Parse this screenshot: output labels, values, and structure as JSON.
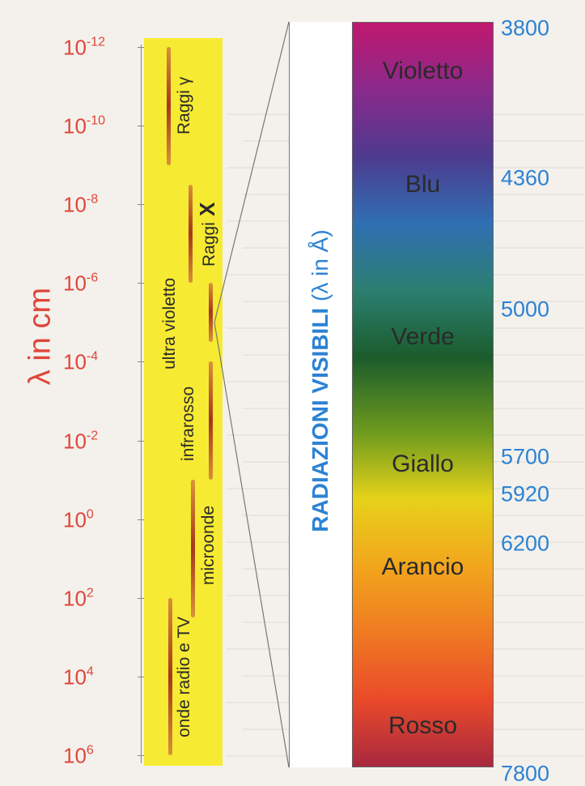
{
  "axis": {
    "label": "λ in cm",
    "ticks": [
      {
        "base": "10",
        "exp": "-12"
      },
      {
        "base": "10",
        "exp": "-10"
      },
      {
        "base": "10",
        "exp": "-8"
      },
      {
        "base": "10",
        "exp": "-6"
      },
      {
        "base": "10",
        "exp": "-4"
      },
      {
        "base": "10",
        "exp": "-2"
      },
      {
        "base": "10",
        "exp": "0"
      },
      {
        "base": "10",
        "exp": "2"
      },
      {
        "base": "10",
        "exp": "4"
      },
      {
        "base": "10",
        "exp": "6"
      }
    ]
  },
  "bands": [
    {
      "label": "Raggi γ",
      "from_exp": -12,
      "to_exp": -9
    },
    {
      "label": "Raggi",
      "extra": "X",
      "from_exp": -8.5,
      "to_exp": -6
    },
    {
      "label": "ultra violetto",
      "from_exp": -6,
      "to_exp": -4.5
    },
    {
      "label": "infrarosso",
      "from_exp": -4,
      "to_exp": -1
    },
    {
      "label": "microonde",
      "from_exp": -1,
      "to_exp": 2.5
    },
    {
      "label": "onde radio e TV",
      "from_exp": 2,
      "to_exp": 6
    }
  ],
  "visible": {
    "title": "RADIAZIONI  VISIBILI",
    "unit": "(λ in Å)",
    "colors": [
      "Violetto",
      "Blu",
      "Verde",
      "Giallo",
      "Arancio",
      "Rosso"
    ],
    "wavelengths": [
      "3800",
      "4360",
      "5000",
      "5700",
      "5920",
      "6200",
      "7800"
    ],
    "wavelength_values": [
      3800,
      4360,
      5000,
      5700,
      5920,
      6200,
      7800
    ],
    "gradient_colors": [
      "#c0186e",
      "#8a2a8c",
      "#4d3a8e",
      "#2f6fb2",
      "#2b7f70",
      "#1b5c2c",
      "#6d9a1e",
      "#e6d21a",
      "#f2a61c",
      "#ef7a22",
      "#ea4a2a",
      "#a8283f"
    ]
  }
}
